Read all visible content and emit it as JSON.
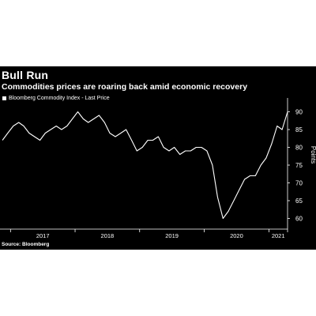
{
  "chart_data": {
    "type": "line",
    "title": "Bull Run",
    "subtitle": "Commodities prices are roaring back amid economic recovery",
    "ylabel": "Points",
    "source": "Source: Bloomberg",
    "ylim": [
      57,
      93
    ],
    "y_ticks": [
      60,
      65,
      70,
      75,
      80,
      85,
      90
    ],
    "x_ticks": [
      "2017",
      "2018",
      "2019",
      "2020",
      "2021"
    ],
    "grid": false,
    "legend_position": "top-left",
    "series": [
      {
        "name": "Bloomberg Commodity Index - Last Price",
        "color": "#ffffff",
        "x": [
          "2016-11",
          "2016-12",
          "2017-01",
          "2017-02",
          "2017-03",
          "2017-04",
          "2017-05",
          "2017-06",
          "2017-07",
          "2017-08",
          "2017-09",
          "2017-10",
          "2017-11",
          "2017-12",
          "2018-01",
          "2018-02",
          "2018-03",
          "2018-04",
          "2018-05",
          "2018-06",
          "2018-07",
          "2018-08",
          "2018-09",
          "2018-10",
          "2018-11",
          "2018-12",
          "2019-01",
          "2019-02",
          "2019-03",
          "2019-04",
          "2019-05",
          "2019-06",
          "2019-07",
          "2019-08",
          "2019-09",
          "2019-10",
          "2019-11",
          "2019-12",
          "2020-01",
          "2020-02",
          "2020-03",
          "2020-04",
          "2020-05",
          "2020-06",
          "2020-07",
          "2020-08",
          "2020-09",
          "2020-10",
          "2020-11",
          "2020-12",
          "2021-01",
          "2021-02",
          "2021-03",
          "2021-04"
        ],
        "values": [
          82,
          84,
          86,
          87,
          86,
          84,
          83,
          82,
          84,
          85,
          86,
          85,
          86,
          88,
          90,
          88,
          87,
          88,
          89,
          87,
          84,
          83,
          84,
          85,
          82,
          79,
          80,
          82,
          82,
          83,
          80,
          79,
          80,
          78,
          79,
          79,
          80,
          80,
          79,
          75,
          66,
          60,
          62,
          65,
          68,
          71,
          72,
          72,
          75,
          77,
          81,
          86,
          85,
          90
        ]
      }
    ]
  }
}
